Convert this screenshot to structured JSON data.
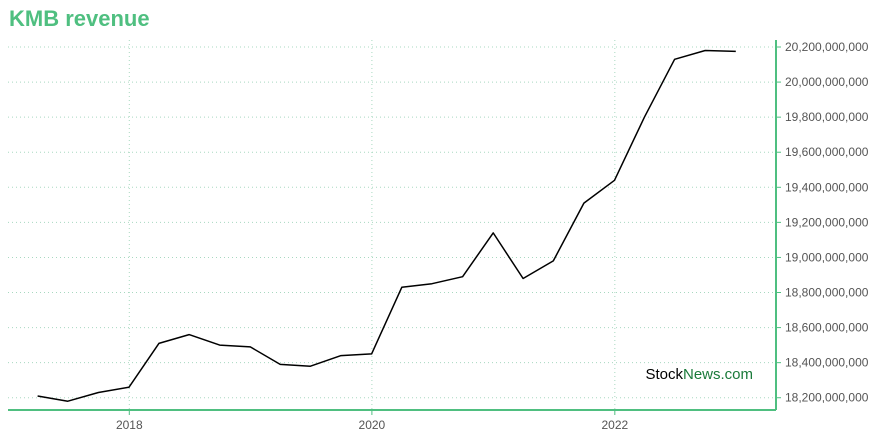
{
  "title": "KMB revenue",
  "watermark": {
    "part1": "Stock",
    "part2": "News.com",
    "color1": "#000000",
    "color2": "#1a7a3a"
  },
  "colors": {
    "accent": "#4fbf80",
    "line": "#000000",
    "grid": "#a8d8c0"
  },
  "chart_data": {
    "type": "line",
    "title": "KMB revenue",
    "xlabel": "",
    "ylabel": "",
    "grid": true,
    "x_ticks": [
      "2018",
      "2020",
      "2022"
    ],
    "y_ticks": [
      "18,200,000,000",
      "18,400,000,000",
      "18,600,000,000",
      "18,800,000,000",
      "19,000,000,000",
      "19,200,000,000",
      "19,400,000,000",
      "19,600,000,000",
      "19,800,000,000",
      "20,000,000,000",
      "20,200,000,000"
    ],
    "ylim": [
      18130000000,
      20240000000
    ],
    "xlim": [
      "2017-01-01",
      "2023-05-01"
    ],
    "series": [
      {
        "x": [
          "2017-03-31",
          "2017-06-30",
          "2017-09-30",
          "2017-12-31",
          "2018-03-31",
          "2018-06-30",
          "2018-09-30",
          "2018-12-31",
          "2019-03-31",
          "2019-06-30",
          "2019-09-30",
          "2019-12-31",
          "2020-03-31",
          "2020-06-30",
          "2020-09-30",
          "2020-12-31",
          "2021-03-31",
          "2021-06-30",
          "2021-09-30",
          "2021-12-31",
          "2022-03-31",
          "2022-06-30",
          "2022-09-30",
          "2022-12-31"
        ],
        "values": [
          18210000000,
          18180000000,
          18230000000,
          18260000000,
          18510000000,
          18560000000,
          18500000000,
          18490000000,
          18390000000,
          18380000000,
          18440000000,
          18450000000,
          18830000000,
          18850000000,
          18890000000,
          19140000000,
          18880000000,
          18980000000,
          19310000000,
          19440000000,
          19800000000,
          20130000000,
          20180000000,
          20175000000
        ]
      }
    ]
  }
}
